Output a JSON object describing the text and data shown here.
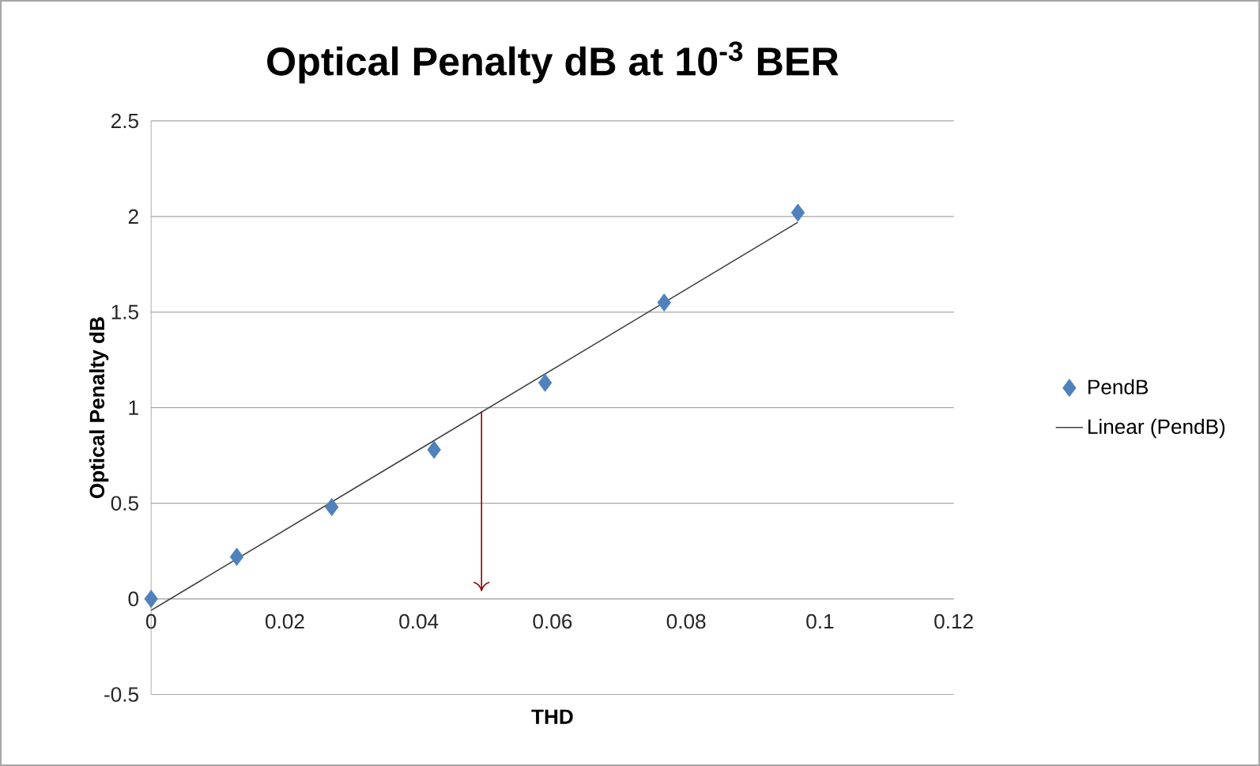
{
  "chart_data": {
    "type": "scatter",
    "title": "Optical Penalty dB at 10$^{-3}$ BER",
    "xlabel": "THD",
    "ylabel": "Optical Penalty dB",
    "xlim": [
      0,
      0.12
    ],
    "xticks": [
      0,
      0.02,
      0.04,
      0.06,
      0.08,
      0.1,
      0.12
    ],
    "ylim": [
      -0.5,
      2.5
    ],
    "yticks": [
      -0.5,
      0,
      0.5,
      1,
      1.5,
      2,
      2.5
    ],
    "grid": "y",
    "legend": "right",
    "series": [
      {
        "name": "PendB",
        "marker": "diamond",
        "color": "#4f81bd",
        "x": [
          0,
          0.0128,
          0.027,
          0.0423,
          0.0589,
          0.0767,
          0.0967
        ],
        "values": [
          0,
          0.22,
          0.48,
          0.78,
          1.13,
          1.55,
          2.02
        ]
      },
      {
        "name": "Linear (PendB)",
        "type": "line",
        "marker": "none",
        "color": "#404040",
        "x": [
          0,
          0.0967
        ],
        "values": [
          -0.06,
          1.97
        ]
      },
      {
        "type": "line",
        "marker": "none",
        "color": "#8b0000",
        "x": [
          0.0494,
          0.0494
        ],
        "values": [
          0.98,
          0.04
        ]
      }
    ]
  }
}
